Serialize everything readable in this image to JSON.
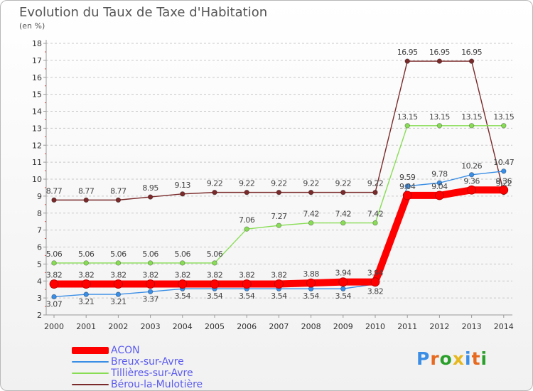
{
  "title": "Evolution du Taux de Taxe d'Habitation",
  "subtitle": "(en %)",
  "logo": {
    "text": "Proxiti",
    "colors": [
      "#3a8ee6",
      "#e66a1f",
      "#2aa02a",
      "#e6b81f",
      "#3a8ee6",
      "#e66a1f",
      "#2aa02a"
    ]
  },
  "chart_data": {
    "type": "line",
    "title": "Evolution du Taux de Taxe d'Habitation",
    "ylabel": "(en %)",
    "x": [
      "2000",
      "2001",
      "2002",
      "2003",
      "2004",
      "2005",
      "2006",
      "2007",
      "2008",
      "2009",
      "2010",
      "2011",
      "2012",
      "2013",
      "2014"
    ],
    "ylim": [
      2,
      18
    ],
    "yticks": [
      2,
      3,
      4,
      5,
      6,
      7,
      8,
      9,
      10,
      11,
      12,
      13,
      14,
      15,
      16,
      17,
      18
    ],
    "grid": "horizontal dashed",
    "legend_position": "bottom-left",
    "series": [
      {
        "name": "ACON",
        "color": "#ff0000",
        "values": [
          3.82,
          3.82,
          3.82,
          3.82,
          3.82,
          3.82,
          3.82,
          3.82,
          3.88,
          3.94,
          3.94,
          9.04,
          9.04,
          9.36,
          9.36
        ],
        "labels": [
          "3.82",
          "3.82",
          "3.82",
          "3.82",
          "3.82",
          "3.82",
          "3.82",
          "3.82",
          "3.88",
          "3.94",
          "3.94",
          "9.04",
          "9.04",
          "9.36",
          "9.36"
        ]
      },
      {
        "name": "Breux-sur-Avre",
        "color": "#3a8ee6",
        "values": [
          3.07,
          3.21,
          3.21,
          3.37,
          3.54,
          3.54,
          3.54,
          3.54,
          3.54,
          3.54,
          3.82,
          9.59,
          9.78,
          10.26,
          10.47
        ],
        "labels": [
          "3.07",
          "3.21",
          "3.21",
          "3.37",
          "3.54",
          "3.54",
          "3.54",
          "3.54",
          "3.54",
          "3.54",
          "3.82",
          "9.59",
          "9.78",
          "10.26",
          "10.47"
        ]
      },
      {
        "name": "Tillières-sur-Avre",
        "color": "#88dd55",
        "values": [
          5.06,
          5.06,
          5.06,
          5.06,
          5.06,
          5.06,
          7.06,
          7.27,
          7.42,
          7.42,
          7.42,
          13.15,
          13.15,
          13.15,
          13.15
        ],
        "labels": [
          "5.06",
          "5.06",
          "5.06",
          "5.06",
          "5.06",
          "5.06",
          "7.06",
          "7.27",
          "7.42",
          "7.42",
          "7.42",
          "13.15",
          "13.15",
          "13.15",
          "13.15"
        ]
      },
      {
        "name": "Bérou-la-Mulotière",
        "color": "#7a2a2a",
        "values": [
          8.77,
          8.77,
          8.77,
          8.95,
          9.13,
          9.22,
          9.22,
          9.22,
          9.22,
          9.22,
          9.22,
          16.95,
          16.95,
          16.95,
          9.22
        ],
        "labels": [
          "8.77",
          "8.77",
          "8.77",
          "8.95",
          "9.13",
          "9.22",
          "9.22",
          "9.22",
          "9.22",
          "9.22",
          "9.22",
          "16.95",
          "16.95",
          "16.95",
          "9.22"
        ]
      }
    ]
  }
}
